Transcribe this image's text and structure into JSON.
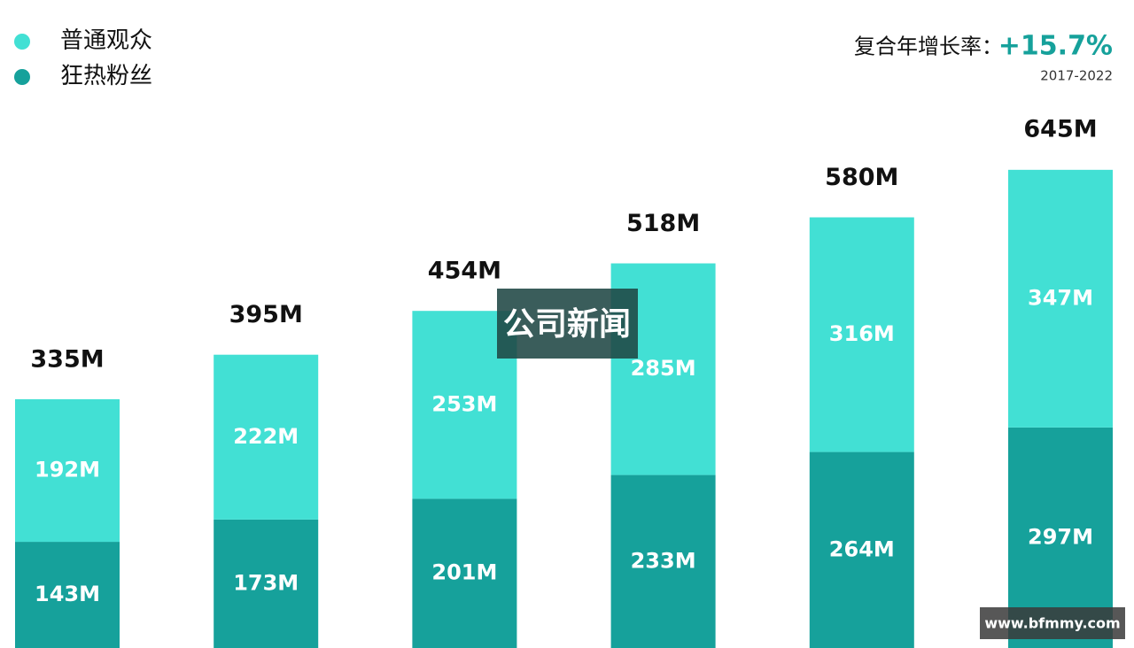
{
  "chart_data": {
    "type": "stacked-bar",
    "categories": [
      null,
      null,
      null,
      null,
      null,
      null
    ],
    "series": [
      {
        "name": "普通观众",
        "color": "#42e0d4",
        "values": [
          192,
          222,
          253,
          285,
          316,
          347
        ],
        "value_labels": [
          "192M",
          "222M",
          "253M",
          "285M",
          "316M",
          "347M"
        ]
      },
      {
        "name": "狂热粉丝",
        "color": "#16a19b",
        "values": [
          143,
          173,
          201,
          233,
          264,
          297
        ],
        "value_labels": [
          "143M",
          "173M",
          "201M",
          "233M",
          "264M",
          "297M"
        ]
      }
    ],
    "totals": {
      "values": [
        335,
        395,
        454,
        518,
        580,
        645
      ],
      "value_labels": [
        "335M",
        "395M",
        "454M",
        "518M",
        "580M",
        "645M"
      ]
    },
    "growth": {
      "label": "复合年增长率：",
      "value": "+15.7%",
      "period": "2017-2022"
    },
    "watermarks": [
      "公司新闻",
      "www.bfmmy.com"
    ]
  }
}
